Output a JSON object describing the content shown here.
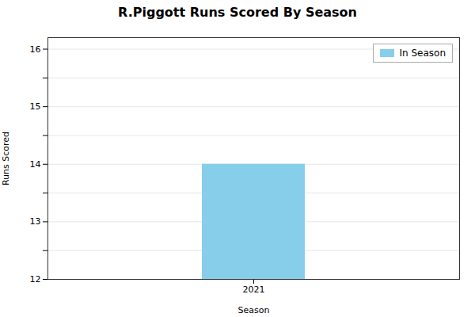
{
  "chart_data": {
    "type": "bar",
    "title": "R.Piggott Runs Scored By Season",
    "xlabel": "Season",
    "ylabel": "Runs Scored",
    "categories": [
      "2021"
    ],
    "series": [
      {
        "name": "In Season",
        "color": "#87CEEB",
        "values": [
          14
        ]
      }
    ],
    "ylim": [
      12,
      16.2
    ],
    "yticks": [
      12,
      {
        "value": 12.5,
        "label": ""
      },
      13,
      {
        "value": 13.5,
        "label": ""
      },
      14,
      {
        "value": 14.5,
        "label": ""
      },
      15,
      {
        "value": 15.5,
        "label": ""
      },
      16
    ],
    "grid": true,
    "legend": "upper right"
  }
}
